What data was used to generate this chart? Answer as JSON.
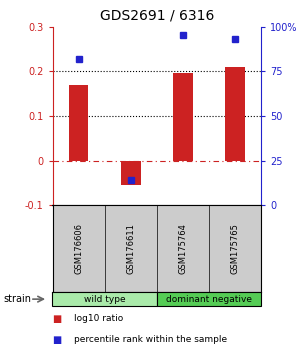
{
  "title": "GDS2691 / 6316",
  "samples": [
    "GSM176606",
    "GSM176611",
    "GSM175764",
    "GSM175765"
  ],
  "log10_ratio": [
    0.17,
    -0.055,
    0.195,
    0.21
  ],
  "percentile_rank": [
    82,
    14,
    95,
    93
  ],
  "ylim_left": [
    -0.1,
    0.3
  ],
  "ylim_right": [
    0,
    100
  ],
  "yticks_left": [
    -0.1,
    0,
    0.1,
    0.2,
    0.3
  ],
  "yticks_right": [
    0,
    25,
    50,
    75,
    100
  ],
  "ytick_labels_left": [
    "-0.1",
    "0",
    "0.1",
    "0.2",
    "0.3"
  ],
  "ytick_labels_right": [
    "0",
    "25",
    "50",
    "75",
    "100%"
  ],
  "hlines_dotted": [
    0.1,
    0.2
  ],
  "hline_dashdot_val": 0.0,
  "bar_color": "#cc2222",
  "dot_color": "#2222cc",
  "groups": [
    {
      "label": "wild type",
      "color": "#aaeaaa",
      "spans": [
        0,
        2
      ]
    },
    {
      "label": "dominant negative",
      "color": "#55cc55",
      "spans": [
        2,
        4
      ]
    }
  ],
  "sample_box_color": "#cccccc",
  "strain_label": "strain",
  "legend_bar_label": "log10 ratio",
  "legend_dot_label": "percentile rank within the sample",
  "background_color": "#ffffff"
}
